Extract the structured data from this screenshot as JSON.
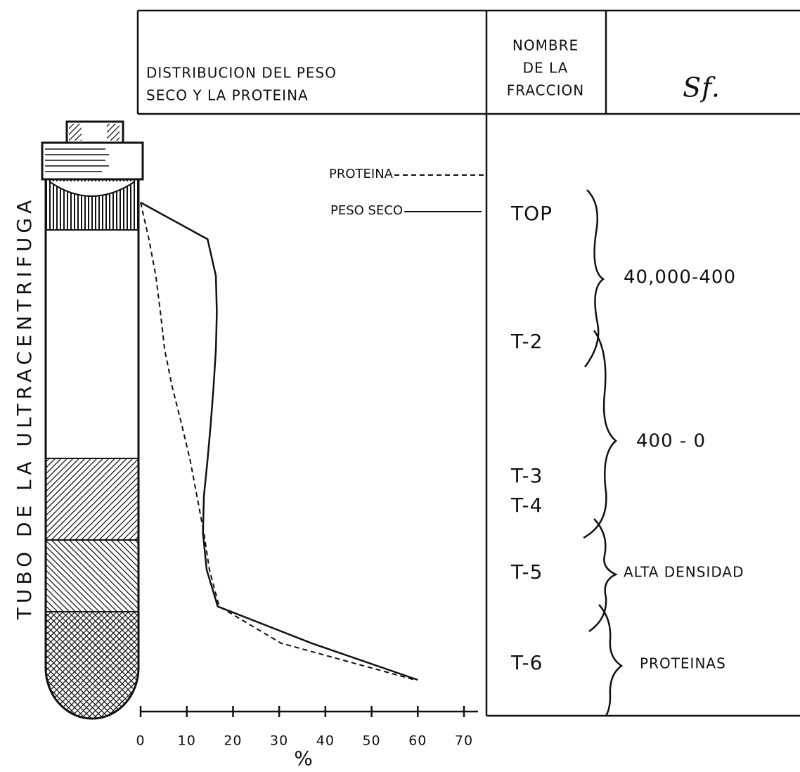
{
  "chart_data": {
    "type": "line",
    "categories": [
      null,
      null,
      null,
      null,
      null,
      null,
      null,
      null,
      null,
      null,
      null,
      null,
      null,
      null
    ],
    "series": [
      {
        "name": "PROTEINA",
        "color": "#111111",
        "dash": true,
        "values": [
          0,
          1.8,
          3.3,
          4.3,
          5.2,
          6.8,
          8.8,
          10.7,
          12.2,
          13.7,
          14.9,
          17,
          30.4,
          59.4
        ]
      },
      {
        "name": "PESO SECO",
        "color": "#111111",
        "dash": false,
        "values": [
          0,
          14.5,
          16.3,
          16.5,
          16.3,
          15.8,
          15.2,
          14.5,
          13.7,
          13.5,
          14.3,
          16.7,
          37,
          60
        ]
      }
    ],
    "xlim": [
      0,
      70
    ],
    "xticks": [
      0,
      10,
      20,
      30,
      40,
      50,
      60,
      70
    ],
    "xlabel": "%"
  },
  "tube_label": "TUBO DE LA ULTRACENTRIFUGA",
  "header": {
    "distribution": [
      "DISTRIBUCION DEL PESO",
      "SECO Y LA PROTEINA"
    ],
    "fraction_name": [
      "NOMBRE",
      "DE LA",
      "FRACCION"
    ],
    "sf": "Sf."
  },
  "fractions": [
    "TOP",
    "T-2",
    "T-3",
    "T-4",
    "T-5",
    "T-6"
  ],
  "sf_groups": [
    "40,000-400",
    "400 - 0",
    "ALTA DENSIDAD",
    "PROTEINAS"
  ]
}
